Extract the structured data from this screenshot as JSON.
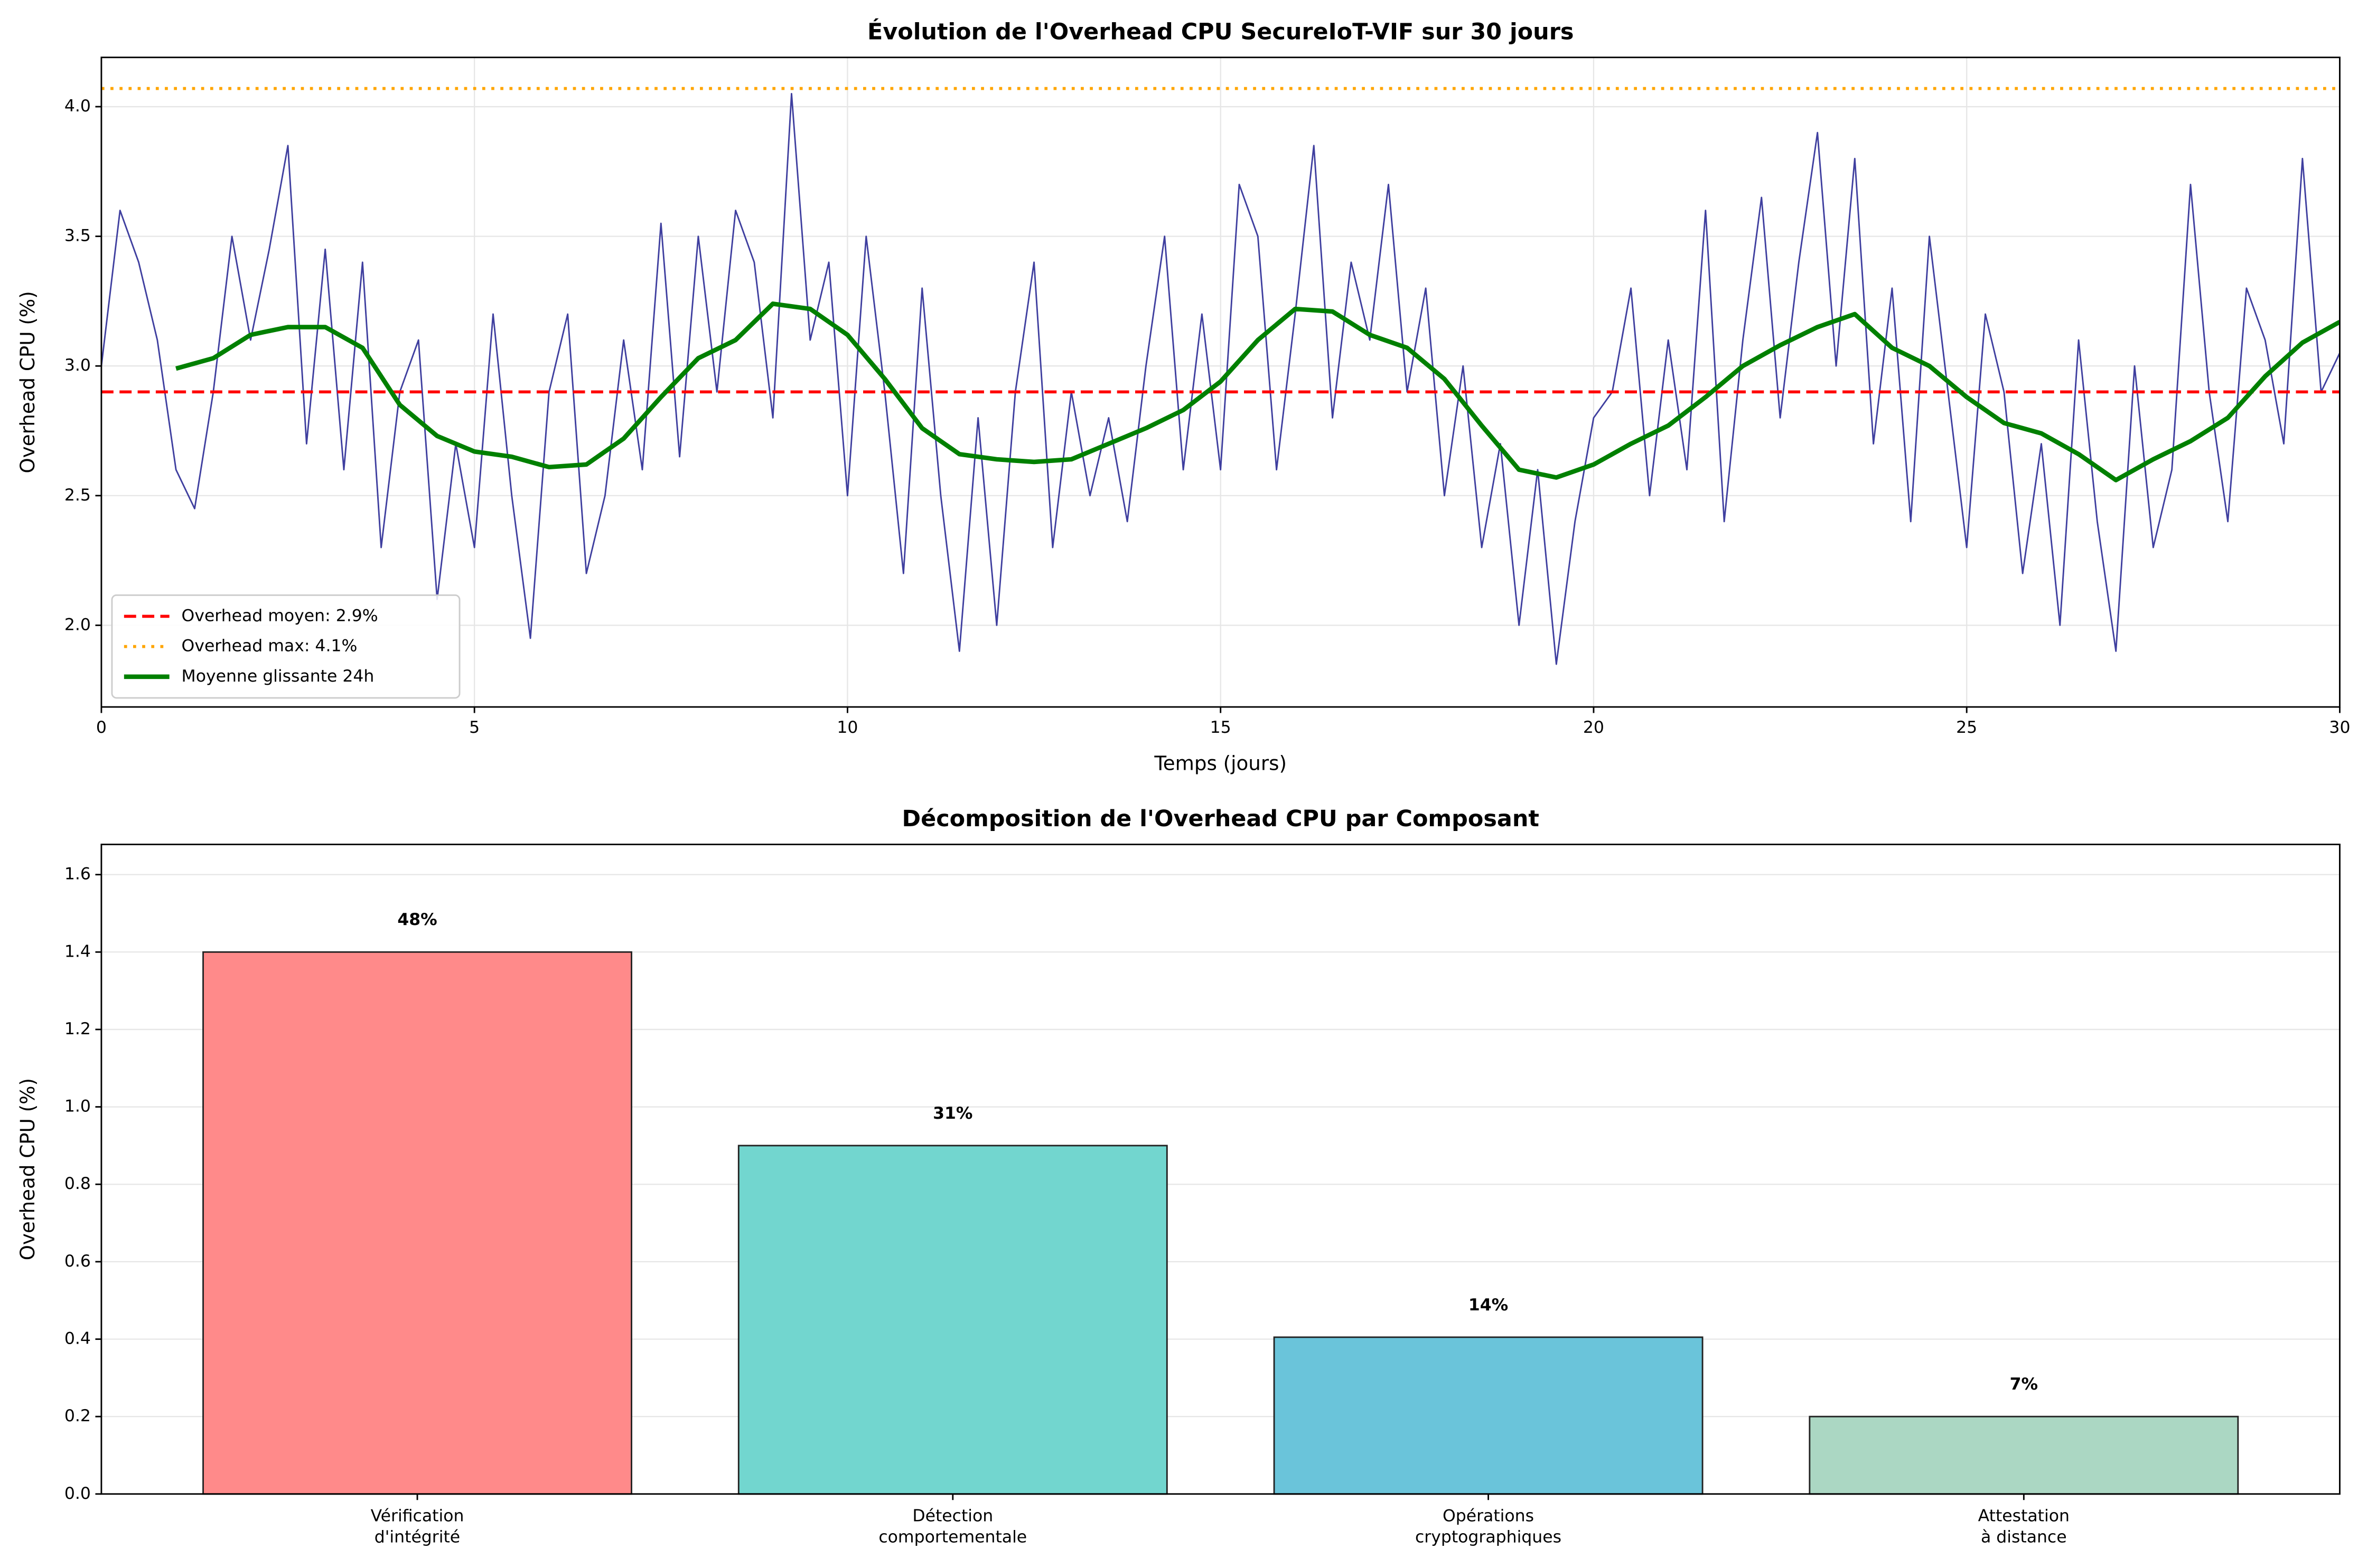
{
  "chart_data": [
    {
      "type": "line",
      "title": "Évolution de l'Overhead CPU SecureIoT-VIF sur 30 jours",
      "xlabel": "Temps (jours)",
      "ylabel": "Overhead CPU (%)",
      "xlim": [
        0,
        30
      ],
      "xticks": [
        0,
        5,
        10,
        15,
        20,
        25,
        30
      ],
      "ylim": [
        1.685,
        4.19
      ],
      "yticks": [
        {
          "value": 2,
          "label": "2.0"
        },
        {
          "value": 2.5,
          "label": "2.5"
        },
        {
          "value": 3,
          "label": "3.0"
        },
        {
          "value": 3.5,
          "label": "3.5"
        },
        {
          "value": 4,
          "label": "4.0"
        }
      ],
      "grid": "both",
      "legend": "lower left",
      "series": [
        {
          "color": "#3f3f9f",
          "width": 1,
          "style": "solid",
          "x": [
            0,
            0.25,
            0.5,
            0.75,
            1,
            1.25,
            1.5,
            1.75,
            2,
            2.25,
            2.5,
            2.75,
            3,
            3.25,
            3.5,
            3.75,
            4,
            4.25,
            4.5,
            4.75,
            5,
            5.25,
            5.5,
            5.75,
            6,
            6.25,
            6.5,
            6.75,
            7,
            7.25,
            7.5,
            7.75,
            8,
            8.25,
            8.5,
            8.75,
            9,
            9.25,
            9.5,
            9.75,
            10,
            10.25,
            10.5,
            10.75,
            11,
            11.25,
            11.5,
            11.75,
            12,
            12.25,
            12.5,
            12.75,
            13,
            13.25,
            13.5,
            13.75,
            14,
            14.25,
            14.5,
            14.75,
            15,
            15.25,
            15.5,
            15.75,
            16,
            16.25,
            16.5,
            16.75,
            17,
            17.25,
            17.5,
            17.75,
            18,
            18.25,
            18.5,
            18.75,
            19,
            19.25,
            19.5,
            19.75,
            20,
            20.25,
            20.5,
            20.75,
            21,
            21.25,
            21.5,
            21.75,
            22,
            22.25,
            22.5,
            22.75,
            23,
            23.25,
            23.5,
            23.75,
            24,
            24.25,
            24.5,
            24.75,
            25,
            25.25,
            25.5,
            25.75,
            26,
            26.25,
            26.5,
            26.75,
            27,
            27.25,
            27.5,
            27.75,
            28,
            28.25,
            28.5,
            28.75,
            29,
            29.25,
            29.5,
            29.75,
            30
          ],
          "values": [
            3.0,
            3.6,
            3.4,
            3.1,
            2.6,
            2.45,
            2.9,
            3.5,
            3.1,
            3.45,
            3.85,
            2.7,
            3.45,
            2.6,
            3.4,
            2.3,
            2.9,
            3.1,
            2.1,
            2.7,
            2.3,
            3.2,
            2.5,
            1.95,
            2.9,
            3.2,
            2.2,
            2.5,
            3.1,
            2.6,
            3.55,
            2.65,
            3.5,
            2.9,
            3.6,
            3.4,
            2.8,
            4.05,
            3.1,
            3.4,
            2.5,
            3.5,
            2.9,
            2.2,
            3.3,
            2.5,
            1.9,
            2.8,
            2.0,
            2.9,
            3.4,
            2.3,
            2.9,
            2.5,
            2.8,
            2.4,
            3.0,
            3.5,
            2.6,
            3.2,
            2.6,
            3.7,
            3.5,
            2.6,
            3.2,
            3.85,
            2.8,
            3.4,
            3.1,
            3.7,
            2.9,
            3.3,
            2.5,
            3.0,
            2.3,
            2.7,
            2.0,
            2.6,
            1.85,
            2.4,
            2.8,
            2.9,
            3.3,
            2.5,
            3.1,
            2.6,
            3.6,
            2.4,
            3.1,
            3.65,
            2.8,
            3.4,
            3.9,
            3.0,
            3.8,
            2.7,
            3.3,
            2.4,
            3.5,
            2.9,
            2.3,
            3.2,
            2.9,
            2.2,
            2.7,
            2.0,
            3.1,
            2.4,
            1.9,
            3.0,
            2.3,
            2.6,
            3.7,
            2.9,
            2.4,
            3.3,
            3.1,
            2.7,
            3.8,
            2.9,
            3.05
          ]
        },
        {
          "name": "Overhead moyen: 2.9%",
          "color": "#ff0000",
          "width": 2,
          "style": "dashed",
          "x": [
            0,
            30
          ],
          "values": [
            2.9,
            2.9
          ]
        },
        {
          "name": "Overhead max: 4.1%",
          "color": "#ffa500",
          "width": 2,
          "style": "dotted",
          "x": [
            0,
            30
          ],
          "values": [
            4.07,
            4.07
          ]
        },
        {
          "name": "Moyenne glissante 24h",
          "color": "#008000",
          "width": 3,
          "style": "solid",
          "x": [
            1,
            1.5,
            2,
            2.5,
            3,
            3.5,
            4,
            4.5,
            5,
            5.5,
            6,
            6.5,
            7,
            7.5,
            8,
            8.5,
            9,
            9.5,
            10,
            10.5,
            11,
            11.5,
            12,
            12.5,
            13,
            13.5,
            14,
            14.5,
            15,
            15.5,
            16,
            16.5,
            17,
            17.5,
            18,
            18.5,
            19,
            19.5,
            20,
            20.5,
            21,
            21.5,
            22,
            22.5,
            23,
            23.5,
            24,
            24.5,
            25,
            25.5,
            26,
            26.5,
            27,
            27.5,
            28,
            28.5,
            29,
            29.5,
            30
          ],
          "values": [
            2.99,
            3.03,
            3.12,
            3.15,
            3.15,
            3.07,
            2.85,
            2.73,
            2.67,
            2.65,
            2.61,
            2.62,
            2.72,
            2.88,
            3.03,
            3.1,
            3.24,
            3.22,
            3.12,
            2.95,
            2.76,
            2.66,
            2.64,
            2.63,
            2.64,
            2.7,
            2.76,
            2.83,
            2.94,
            3.1,
            3.22,
            3.21,
            3.12,
            3.07,
            2.95,
            2.77,
            2.6,
            2.57,
            2.62,
            2.7,
            2.77,
            2.88,
            3.0,
            3.08,
            3.15,
            3.2,
            3.07,
            3.0,
            2.88,
            2.78,
            2.74,
            2.66,
            2.56,
            2.64,
            2.71,
            2.8,
            2.96,
            3.09,
            3.17
          ]
        }
      ]
    },
    {
      "type": "bar",
      "title": "Décomposition de l'Overhead CPU par Composant",
      "ylabel": "Overhead CPU (%)",
      "categories": [
        "Vérification\nd'intégrité",
        "Détection\ncomportementale",
        "Opérations\ncryptographiques",
        "Attestation\nà distance"
      ],
      "values": [
        1.4,
        0.9,
        0.405,
        0.2
      ],
      "annotations": [
        "48%",
        "31%",
        "14%",
        "7%"
      ],
      "colors": [
        "#ff8a8a",
        "#72d6cf",
        "#6ac4da",
        "#abd7c3"
      ],
      "ylim": [
        0,
        1.678
      ],
      "yticks": [
        {
          "value": 0,
          "label": "0.0"
        },
        {
          "value": 0.2,
          "label": "0.2"
        },
        {
          "value": 0.4,
          "label": "0.4"
        },
        {
          "value": 0.6,
          "label": "0.6"
        },
        {
          "value": 0.8,
          "label": "0.8"
        },
        {
          "value": 1,
          "label": "1.0"
        },
        {
          "value": 1.2,
          "label": "1.2"
        },
        {
          "value": 1.4,
          "label": "1.4"
        },
        {
          "value": 1.6,
          "label": "1.6"
        }
      ],
      "grid": "y"
    }
  ]
}
